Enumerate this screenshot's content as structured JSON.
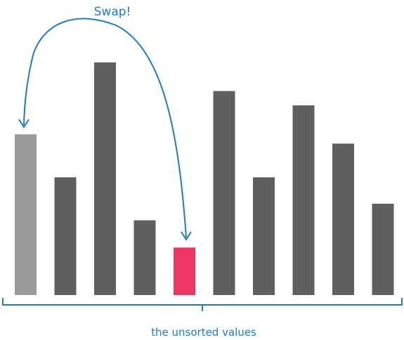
{
  "annotation": "Swap!",
  "caption": "the unsorted values",
  "colors": {
    "bar": "#5f5f5f",
    "swap_source": "#9a9a9a",
    "swap_target": "#ee3563",
    "accent": "#1e7bc4"
  },
  "bars": [
    {
      "index": 0,
      "value": 57.2,
      "state": "swap-source"
    },
    {
      "index": 1,
      "value": 41.9,
      "state": "default"
    },
    {
      "index": 2,
      "value": 82.8,
      "state": "default"
    },
    {
      "index": 3,
      "value": 26.6,
      "state": "default"
    },
    {
      "index": 4,
      "value": 16.9,
      "state": "swap-target"
    },
    {
      "index": 5,
      "value": 72.6,
      "state": "default"
    },
    {
      "index": 6,
      "value": 41.9,
      "state": "default"
    },
    {
      "index": 7,
      "value": 67.5,
      "state": "default"
    },
    {
      "index": 8,
      "value": 53.9,
      "state": "default"
    },
    {
      "index": 9,
      "value": 32.5,
      "state": "default"
    }
  ]
}
